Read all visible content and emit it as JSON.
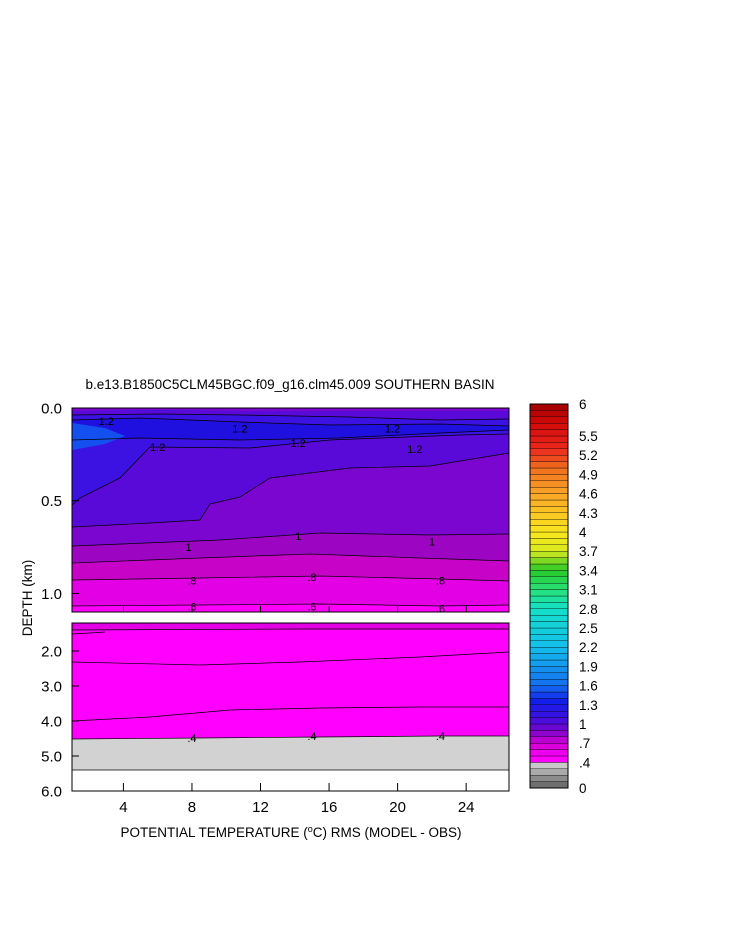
{
  "chart_data": {
    "type": "heatmap",
    "title": "b.e13.B1850C5CLM45BGC.f09_g16.clm45.009 SOUTHERN BASIN",
    "xlabel": "POTENTIAL TEMPERATURE (°C) RMS (MODEL - OBS)",
    "xlabel_parts": {
      "before": "POTENTIAL TEMPERATURE (",
      "superscript": "o",
      "after": "C) RMS (MODEL - OBS)"
    },
    "ylabel": "DEPTH (km)",
    "xlim": [
      1,
      26.5
    ],
    "x_ticks": [
      4,
      8,
      12,
      16,
      20,
      24
    ],
    "x_tick_labels": [
      "4",
      "8",
      "12",
      "16",
      "20",
      "24"
    ],
    "upper_panel": {
      "ylim": [
        0.0,
        1.1
      ],
      "y_ticks": [
        0.0,
        0.5,
        1.0
      ],
      "y_tick_labels": [
        "0.0",
        "0.5",
        "1.0"
      ]
    },
    "lower_panel": {
      "ylim": [
        1.2,
        6.0
      ],
      "y_ticks": [
        2.0,
        3.0,
        4.0,
        5.0,
        6.0
      ],
      "y_tick_labels": [
        "2.0",
        "3.0",
        "4.0",
        "5.0",
        "6.0"
      ]
    },
    "colorbar": {
      "min": 0,
      "max": 6,
      "step": 0.1,
      "tick_values": [
        0,
        0.4,
        0.7,
        1,
        1.3,
        1.6,
        1.9,
        2.2,
        2.5,
        2.8,
        3.1,
        3.4,
        3.7,
        4,
        4.3,
        4.6,
        4.9,
        5.2,
        5.5,
        6
      ],
      "tick_labels": [
        "0",
        ".4",
        ".7",
        "1",
        "1.3",
        "1.6",
        "1.9",
        "2.2",
        "2.5",
        "2.8",
        "3.1",
        "3.4",
        "3.7",
        "4",
        "4.3",
        "4.6",
        "4.9",
        "5.2",
        "5.5",
        "6"
      ]
    },
    "contour_labels": [
      {
        "text": "1.2",
        "x": 3.0,
        "y": 0.07
      },
      {
        "text": "1.2",
        "x": 10.8,
        "y": 0.11
      },
      {
        "text": "1.2",
        "x": 19.7,
        "y": 0.11
      },
      {
        "text": "1.2",
        "x": 6.0,
        "y": 0.21
      },
      {
        "text": "1.2",
        "x": 14.2,
        "y": 0.19
      },
      {
        "text": "1.2",
        "x": 21.0,
        "y": 0.22
      },
      {
        "text": "1",
        "x": 14.2,
        "y": 0.69
      },
      {
        "text": "1",
        "x": 22.0,
        "y": 0.72
      },
      {
        "text": "1",
        "x": 7.8,
        "y": 0.75
      },
      {
        "text": ".8",
        "x": 8.0,
        "y": 0.93
      },
      {
        "text": ".8",
        "x": 15.0,
        "y": 0.91
      },
      {
        "text": ".8",
        "x": 22.5,
        "y": 0.93
      },
      {
        "text": ".6",
        "x": 8.0,
        "y": 1.07
      },
      {
        "text": ".6",
        "x": 15.0,
        "y": 1.07
      },
      {
        "text": ".6",
        "x": 22.5,
        "y": 1.08
      },
      {
        "text": ".4",
        "x": 8.0,
        "y": 4.48
      },
      {
        "text": ".4",
        "x": 15.0,
        "y": 4.43
      },
      {
        "text": ".4",
        "x": 22.5,
        "y": 4.43
      }
    ],
    "colors": {
      "deep_blue": "#1a1ae8",
      "mid_blue": "#1f10e0",
      "bright_blue": "#1450f0",
      "blue_purple": "#3c12e2",
      "violet": "#5a0ad8",
      "purple": "#7a06cf",
      "purple_magenta": "#9c06c2",
      "magenta": "#c803c8",
      "bright_magenta": "#e400e4",
      "pure_magenta": "#ff00ff",
      "land_gray": "#d2d2d2"
    }
  }
}
